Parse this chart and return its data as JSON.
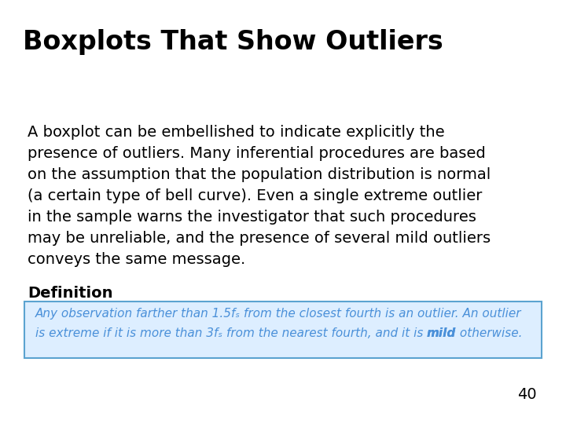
{
  "title": "Boxplots That Show Outliers",
  "title_color": "#000000",
  "title_bg_color": "#cce8f4",
  "title_border_color": "#5dade2",
  "body_lines": [
    "A boxplot can be embellished to indicate explicitly the",
    "presence of outliers. Many inferential procedures are based",
    "on the assumption that the population distribution is normal",
    "(a certain type of bell curve). Even a single extreme outlier",
    "in the sample warns the investigator that such procedures",
    "may be unreliable, and the presence of several mild outliers",
    "conveys the same message."
  ],
  "body_text_color": "#000000",
  "definition_label": "Definition",
  "definition_label_color": "#000000",
  "definition_box_bg": "#ddeeff",
  "definition_box_border": "#5ba3d0",
  "def_line1_parts": [
    {
      "text": "Any observation farther than 1.5",
      "bold": false
    },
    {
      "text": "f",
      "bold": false,
      "italic_sub": true
    },
    {
      "text": "ₛ",
      "bold": false,
      "sub": true
    },
    {
      "text": " from the closest fourth is an outlier. An outlier",
      "bold": false
    }
  ],
  "def_line2_parts": [
    {
      "text": "is extreme if it is more than 3",
      "bold": false
    },
    {
      "text": "f",
      "bold": false,
      "italic_sub": true
    },
    {
      "text": "ₛ",
      "bold": false,
      "sub": true
    },
    {
      "text": " from the nearest fourth, and it is ",
      "bold": false
    },
    {
      "text": "mild",
      "bold": true
    },
    {
      "text": " otherwise.",
      "bold": false
    }
  ],
  "def_line1": "Any observation farther than 1.5fₛ from the closest fourth is an outlier. An outlier",
  "def_line2_pre": "is extreme if it is more than 3fₛ from the nearest fourth, and it is ",
  "def_line2_bold": "mild",
  "def_line2_post": " otherwise.",
  "definition_text_color": "#4a90d9",
  "page_number": "40",
  "bg_color": "#ffffff"
}
